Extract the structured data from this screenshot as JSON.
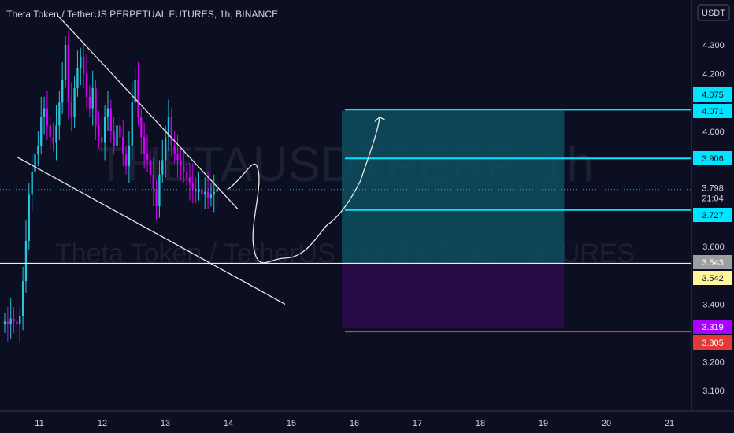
{
  "header": {
    "symbol_title": "Theta Token / TetherUS PERPETUAL FUTURES, 1h, BINANCE"
  },
  "watermark": {
    "line1": "THETAUSDTPERP, 1h",
    "line2": "Theta Token / TetherUS PERPETUAL FUTURES"
  },
  "currency_label": "USDT",
  "colors": {
    "background": "#0c0f22",
    "candle_up": "#26c6da",
    "candle_down": "#d500f9",
    "target_zone": "#0e4a5c",
    "stop_zone": "#2a0a4a",
    "cyan_line": "#00e5ff",
    "yellow_line": "#fff59d",
    "red_line": "#e53935",
    "trend_line": "#e6e6e6"
  },
  "chart_data": {
    "type": "candlestick",
    "title": "Theta Token / TetherUS PERPETUAL FUTURES, 1h, BINANCE",
    "y_unit": "USDT",
    "y_ticks": [
      "4.300",
      "4.200",
      "4.000",
      "3.600",
      "3.400",
      "3.200",
      "3.100"
    ],
    "x_ticks": [
      "11",
      "12",
      "13",
      "14",
      "15",
      "16",
      "17",
      "18",
      "19",
      "20",
      "21"
    ],
    "ylim": [
      3.03,
      4.44
    ],
    "x_range_days": [
      10.45,
      21.35
    ],
    "last_price": 3.798,
    "countdown": "21:04",
    "price_series_close": [
      3.34,
      3.33,
      3.35,
      3.34,
      3.33,
      3.36,
      3.48,
      3.62,
      3.78,
      3.86,
      3.92,
      3.95,
      4.05,
      4.08,
      4.02,
      3.98,
      3.96,
      4.02,
      4.1,
      4.18,
      4.3,
      4.1,
      4.05,
      4.15,
      4.22,
      4.26,
      4.2,
      4.12,
      4.08,
      4.15,
      4.02,
      3.98,
      3.96,
      4.05,
      4.08,
      4.0,
      3.95,
      4.02,
      3.98,
      3.92,
      3.88,
      3.95,
      4.1,
      4.18,
      4.05,
      3.98,
      3.92,
      3.9,
      3.85,
      3.8,
      3.74,
      3.85,
      3.9,
      3.98,
      4.05,
      3.95,
      3.92,
      3.9,
      3.88,
      3.86,
      3.84,
      3.82,
      3.8,
      3.79,
      3.8,
      3.78,
      3.79,
      3.77,
      3.78,
      3.79,
      3.8
    ],
    "levels": [
      {
        "price": 4.075,
        "label": "4.075",
        "role": "target line",
        "color": "#00e5ff",
        "badge_text_color": "#0b0e1f"
      },
      {
        "price": 4.071,
        "label": "4.071",
        "role": "target zone top",
        "color": "#00e5ff",
        "badge_text_color": "#0b0e1f"
      },
      {
        "price": 3.906,
        "label": "3.906",
        "role": "resistance",
        "color": "#00e5ff",
        "badge_text_color": "#0b0e1f"
      },
      {
        "price": 3.727,
        "label": "3.727",
        "role": "support",
        "color": "#00e5ff",
        "badge_text_color": "#0b0e1f"
      },
      {
        "price": 3.543,
        "label": "3.543",
        "role": "entry",
        "color": "#9e9e9e",
        "badge_text_color": "#ffffff"
      },
      {
        "price": 3.542,
        "label": "3.542",
        "role": "entry line",
        "color": "#fff59d",
        "badge_text_color": "#0b0e1f"
      },
      {
        "price": 3.319,
        "label": "3.319",
        "role": "stop zone bottom",
        "color": "#aa00ff",
        "badge_text_color": "#ffffff"
      },
      {
        "price": 3.305,
        "label": "3.305",
        "role": "stop loss",
        "color": "#e53935",
        "badge_text_color": "#ffffff"
      }
    ],
    "zones": [
      {
        "name": "target",
        "price_top": 4.071,
        "price_bottom": 3.543,
        "day_start": 15.8,
        "day_end": 19.33
      },
      {
        "name": "stop",
        "price_top": 3.543,
        "price_bottom": 3.319,
        "day_start": 15.8,
        "day_end": 19.33
      }
    ],
    "trend_lines": [
      {
        "from": {
          "day": 11.3,
          "price": 4.4
        },
        "to": {
          "day": 14.15,
          "price": 3.73
        }
      },
      {
        "from": {
          "day": 10.65,
          "price": 3.91
        },
        "to": {
          "day": 14.9,
          "price": 3.4
        }
      }
    ],
    "projection_path": [
      {
        "day": 14.0,
        "price": 3.8
      },
      {
        "day": 14.45,
        "price": 3.88
      },
      {
        "day": 14.4,
        "price": 3.6
      },
      {
        "day": 14.9,
        "price": 3.56
      },
      {
        "day": 15.6,
        "price": 3.68
      },
      {
        "day": 16.1,
        "price": 3.83
      },
      {
        "day": 16.4,
        "price": 4.05
      }
    ],
    "grid": false,
    "legend": "none"
  }
}
